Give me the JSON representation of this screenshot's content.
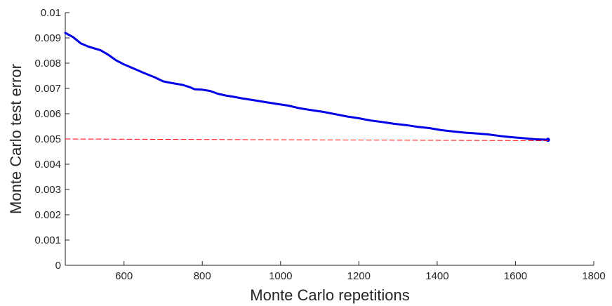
{
  "chart_data": {
    "type": "line",
    "title": "",
    "xlabel": "Monte Carlo repetitions",
    "ylabel": "Monte Carlo test error",
    "xlim": [
      450,
      1800
    ],
    "ylim": [
      0,
      0.01
    ],
    "x_ticks": [
      600,
      800,
      1000,
      1200,
      1400,
      1600,
      1800
    ],
    "x_tick_labels": [
      "600",
      "800",
      "1000",
      "1200",
      "1400",
      "1600",
      "1800"
    ],
    "y_ticks": [
      0,
      0.001,
      0.002,
      0.003,
      0.004,
      0.005,
      0.006,
      0.007,
      0.008,
      0.009,
      0.01
    ],
    "y_tick_labels": [
      "0",
      "0.001",
      "0.002",
      "0.003",
      "0.004",
      "0.005",
      "0.006",
      "0.007",
      "0.008",
      "0.009",
      "0.01"
    ],
    "grid": false,
    "legend": "none",
    "series": [
      {
        "color": "#0000e6",
        "style": "solid",
        "x": [
          450,
          470,
          490,
          510,
          540,
          560,
          580,
          600,
          620,
          650,
          680,
          700,
          720,
          750,
          770,
          780,
          800,
          820,
          840,
          860,
          880,
          900,
          930,
          960,
          990,
          1020,
          1050,
          1080,
          1110,
          1140,
          1170,
          1200,
          1230,
          1260,
          1290,
          1320,
          1350,
          1380,
          1410,
          1440,
          1470,
          1500,
          1530,
          1560,
          1590,
          1620,
          1650,
          1683
        ],
        "y": [
          0.0092,
          0.00903,
          0.00878,
          0.00865,
          0.00851,
          0.00833,
          0.00811,
          0.00795,
          0.00782,
          0.00762,
          0.00743,
          0.00728,
          0.00722,
          0.00714,
          0.00704,
          0.00697,
          0.00695,
          0.0069,
          0.00679,
          0.00672,
          0.00667,
          0.00661,
          0.00654,
          0.00646,
          0.00639,
          0.00632,
          0.00621,
          0.00614,
          0.00607,
          0.00598,
          0.00589,
          0.00582,
          0.00573,
          0.00567,
          0.0056,
          0.00555,
          0.00548,
          0.00543,
          0.00535,
          0.0053,
          0.00525,
          0.00522,
          0.00518,
          0.00512,
          0.00507,
          0.00503,
          0.00499,
          0.00497
        ]
      },
      {
        "color": "#ff0000",
        "style": "dashed",
        "x": [
          450,
          1683
        ],
        "y": [
          0.005,
          0.00493
        ]
      }
    ]
  }
}
